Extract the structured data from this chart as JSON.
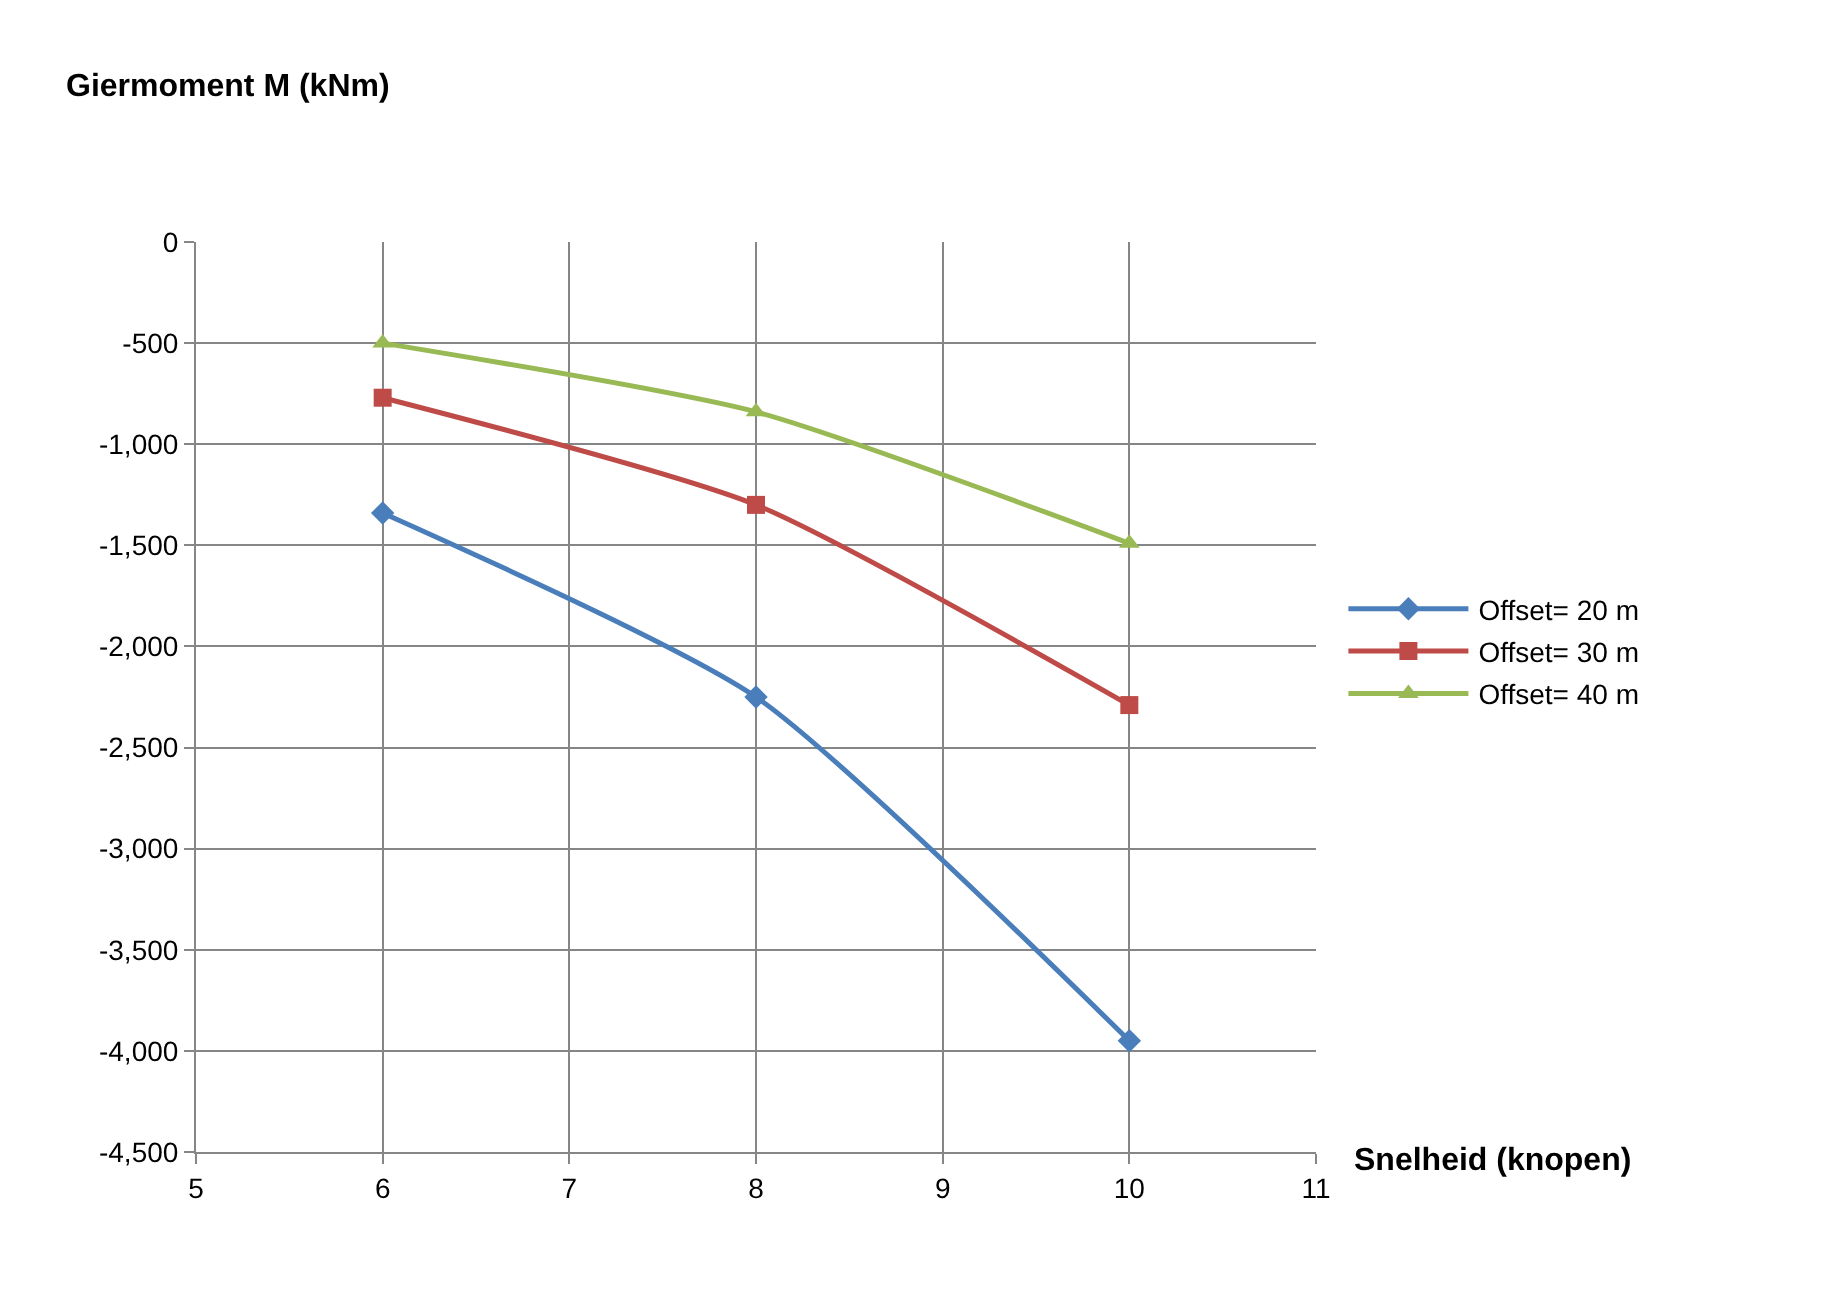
{
  "chart_data": {
    "type": "line",
    "xlabel": "Snelheid (knopen)",
    "ylabel": "Giermoment M (kNm)",
    "x": [
      6,
      8,
      10
    ],
    "series": [
      {
        "name": "Offset= 20 m",
        "color": "#4a7ebb",
        "marker": "diamond",
        "values": [
          -1340,
          -2250,
          -3950
        ]
      },
      {
        "name": "Offset= 30 m",
        "color": "#be4b48",
        "marker": "square",
        "values": [
          -770,
          -1300,
          -2290
        ]
      },
      {
        "name": "Offset= 40 m",
        "color": "#98b954",
        "marker": "triangle",
        "values": [
          -500,
          -840,
          -1490
        ]
      }
    ],
    "xlim": [
      5,
      11
    ],
    "xticks": [
      5,
      6,
      7,
      8,
      9,
      10,
      11
    ],
    "ylim": [
      -4500,
      0
    ],
    "yticks": [
      0,
      -500,
      {
        "value": -1000,
        "label": "-1,000"
      },
      {
        "value": -1500,
        "label": "-1,500"
      },
      {
        "value": -2000,
        "label": "-2,000"
      },
      {
        "value": -2500,
        "label": "-2,500"
      },
      {
        "value": -3000,
        "label": "-3,000"
      },
      {
        "value": -3500,
        "label": "-3,500"
      },
      {
        "value": -4000,
        "label": "-4,000"
      },
      {
        "value": -4500,
        "label": "-4,500"
      }
    ],
    "grid": true,
    "legend": "right",
    "line_style": "solid"
  }
}
